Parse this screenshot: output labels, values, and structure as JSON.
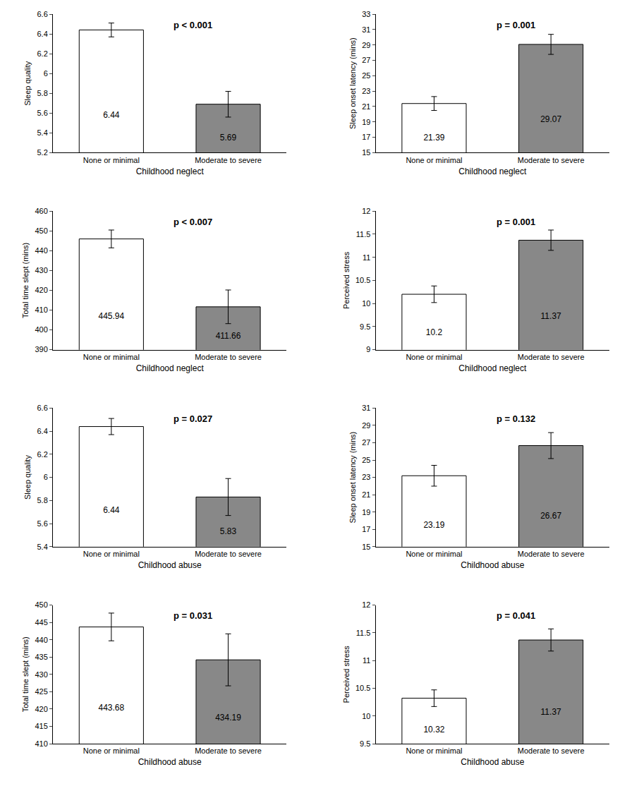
{
  "chart_data": [
    {
      "type": "bar",
      "ylabel": "Sleep quality",
      "xlabel": "Childhood neglect",
      "annotations": [
        "p < 0.001"
      ],
      "categories": [
        "None or minimal",
        "Moderate to severe"
      ],
      "values": [
        6.44,
        5.69
      ],
      "errors": [
        0.07,
        0.13
      ],
      "colors": [
        "white",
        "#888888"
      ],
      "ylim": [
        5.2,
        6.6
      ],
      "yticks": [
        5.2,
        5.4,
        5.6,
        5.8,
        6,
        6.2,
        6.4,
        6.6
      ],
      "grid": false,
      "data_labels": true
    },
    {
      "type": "bar",
      "ylabel": "Sleep onset latency (mins)",
      "xlabel": "Childhood neglect",
      "annotations": [
        "p = 0.001"
      ],
      "categories": [
        "None or minimal",
        "Moderate to severe"
      ],
      "values": [
        21.39,
        29.07
      ],
      "errors": [
        0.9,
        1.3
      ],
      "colors": [
        "white",
        "#888888"
      ],
      "ylim": [
        15,
        33
      ],
      "yticks": [
        15,
        17,
        19,
        21,
        23,
        25,
        27,
        29,
        31,
        33
      ],
      "grid": false,
      "data_labels": true
    },
    {
      "type": "bar",
      "ylabel": "Total time slept (mins)",
      "xlabel": "Childhood neglect",
      "annotations": [
        "p < 0.007"
      ],
      "categories": [
        "None or minimal",
        "Moderate to severe"
      ],
      "values": [
        445.94,
        411.66
      ],
      "errors": [
        4.5,
        8.5
      ],
      "colors": [
        "white",
        "#888888"
      ],
      "ylim": [
        390,
        460
      ],
      "yticks": [
        390,
        400,
        410,
        420,
        430,
        440,
        450,
        460
      ],
      "grid": false,
      "data_labels": true
    },
    {
      "type": "bar",
      "ylabel": "Perceived stress",
      "xlabel": "Childhood neglect",
      "annotations": [
        "p = 0.001"
      ],
      "categories": [
        "None or minimal",
        "Moderate to severe"
      ],
      "values": [
        10.2,
        11.37
      ],
      "errors": [
        0.18,
        0.22
      ],
      "colors": [
        "white",
        "#888888"
      ],
      "ylim": [
        9,
        12
      ],
      "yticks": [
        9,
        9.5,
        10,
        10.5,
        11,
        11.5,
        12
      ],
      "grid": false,
      "data_labels": true
    },
    {
      "type": "bar",
      "ylabel": "Sleep quality",
      "xlabel": "Childhood abuse",
      "annotations": [
        "p = 0.027"
      ],
      "categories": [
        "None or minimal",
        "Moderate to severe"
      ],
      "values": [
        6.44,
        5.83
      ],
      "errors": [
        0.07,
        0.16
      ],
      "colors": [
        "white",
        "#888888"
      ],
      "ylim": [
        5.4,
        6.6
      ],
      "yticks": [
        5.4,
        5.6,
        5.8,
        6,
        6.2,
        6.4,
        6.6
      ],
      "grid": false,
      "data_labels": true
    },
    {
      "type": "bar",
      "ylabel": "Sleep onset latency (mins)",
      "xlabel": "Childhood abuse",
      "annotations": [
        "p = 0.132"
      ],
      "categories": [
        "None or minimal",
        "Moderate to severe"
      ],
      "values": [
        23.19,
        26.67
      ],
      "errors": [
        1.2,
        1.5
      ],
      "colors": [
        "white",
        "#888888"
      ],
      "ylim": [
        15,
        31
      ],
      "yticks": [
        15,
        17,
        19,
        21,
        23,
        25,
        27,
        29,
        31
      ],
      "grid": false,
      "data_labels": true
    },
    {
      "type": "bar",
      "ylabel": "Total time slept (mins)",
      "xlabel": "Childhood abuse",
      "annotations": [
        "p = 0.031"
      ],
      "categories": [
        "None or minimal",
        "Moderate to severe"
      ],
      "values": [
        443.68,
        434.19
      ],
      "errors": [
        4.0,
        7.5
      ],
      "colors": [
        "white",
        "#888888"
      ],
      "ylim": [
        410,
        450
      ],
      "yticks": [
        410,
        415,
        420,
        425,
        430,
        435,
        440,
        445,
        450
      ],
      "grid": false,
      "data_labels": true
    },
    {
      "type": "bar",
      "ylabel": "Perceived stress",
      "xlabel": "Childhood abuse",
      "annotations": [
        "p = 0.041"
      ],
      "categories": [
        "None or minimal",
        "Moderate to severe"
      ],
      "values": [
        10.32,
        11.37
      ],
      "errors": [
        0.15,
        0.2
      ],
      "colors": [
        "white",
        "#888888"
      ],
      "ylim": [
        9.5,
        12
      ],
      "yticks": [
        9.5,
        10,
        10.5,
        11,
        11.5,
        12
      ],
      "grid": false,
      "data_labels": true
    }
  ]
}
